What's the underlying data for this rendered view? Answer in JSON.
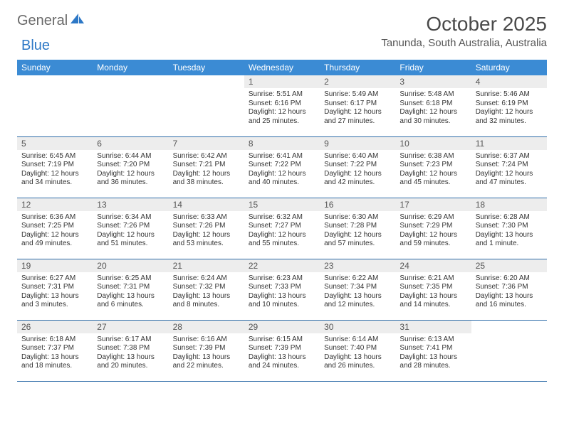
{
  "logo": {
    "word1": "General",
    "word2": "Blue"
  },
  "title": "October 2025",
  "location": "Tanunda, South Australia, Australia",
  "headers": [
    "Sunday",
    "Monday",
    "Tuesday",
    "Wednesday",
    "Thursday",
    "Friday",
    "Saturday"
  ],
  "colors": {
    "header_bg": "#3b8bd4",
    "header_text": "#ffffff",
    "rule": "#2d6ca8",
    "daynum_bg": "#ededed",
    "logo_accent": "#2d78c6"
  },
  "weeks": [
    [
      {
        "n": "",
        "sr": "",
        "ss": "",
        "dl": ""
      },
      {
        "n": "",
        "sr": "",
        "ss": "",
        "dl": ""
      },
      {
        "n": "",
        "sr": "",
        "ss": "",
        "dl": ""
      },
      {
        "n": "1",
        "sr": "Sunrise: 5:51 AM",
        "ss": "Sunset: 6:16 PM",
        "dl": "Daylight: 12 hours and 25 minutes."
      },
      {
        "n": "2",
        "sr": "Sunrise: 5:49 AM",
        "ss": "Sunset: 6:17 PM",
        "dl": "Daylight: 12 hours and 27 minutes."
      },
      {
        "n": "3",
        "sr": "Sunrise: 5:48 AM",
        "ss": "Sunset: 6:18 PM",
        "dl": "Daylight: 12 hours and 30 minutes."
      },
      {
        "n": "4",
        "sr": "Sunrise: 5:46 AM",
        "ss": "Sunset: 6:19 PM",
        "dl": "Daylight: 12 hours and 32 minutes."
      }
    ],
    [
      {
        "n": "5",
        "sr": "Sunrise: 6:45 AM",
        "ss": "Sunset: 7:19 PM",
        "dl": "Daylight: 12 hours and 34 minutes."
      },
      {
        "n": "6",
        "sr": "Sunrise: 6:44 AM",
        "ss": "Sunset: 7:20 PM",
        "dl": "Daylight: 12 hours and 36 minutes."
      },
      {
        "n": "7",
        "sr": "Sunrise: 6:42 AM",
        "ss": "Sunset: 7:21 PM",
        "dl": "Daylight: 12 hours and 38 minutes."
      },
      {
        "n": "8",
        "sr": "Sunrise: 6:41 AM",
        "ss": "Sunset: 7:22 PM",
        "dl": "Daylight: 12 hours and 40 minutes."
      },
      {
        "n": "9",
        "sr": "Sunrise: 6:40 AM",
        "ss": "Sunset: 7:22 PM",
        "dl": "Daylight: 12 hours and 42 minutes."
      },
      {
        "n": "10",
        "sr": "Sunrise: 6:38 AM",
        "ss": "Sunset: 7:23 PM",
        "dl": "Daylight: 12 hours and 45 minutes."
      },
      {
        "n": "11",
        "sr": "Sunrise: 6:37 AM",
        "ss": "Sunset: 7:24 PM",
        "dl": "Daylight: 12 hours and 47 minutes."
      }
    ],
    [
      {
        "n": "12",
        "sr": "Sunrise: 6:36 AM",
        "ss": "Sunset: 7:25 PM",
        "dl": "Daylight: 12 hours and 49 minutes."
      },
      {
        "n": "13",
        "sr": "Sunrise: 6:34 AM",
        "ss": "Sunset: 7:26 PM",
        "dl": "Daylight: 12 hours and 51 minutes."
      },
      {
        "n": "14",
        "sr": "Sunrise: 6:33 AM",
        "ss": "Sunset: 7:26 PM",
        "dl": "Daylight: 12 hours and 53 minutes."
      },
      {
        "n": "15",
        "sr": "Sunrise: 6:32 AM",
        "ss": "Sunset: 7:27 PM",
        "dl": "Daylight: 12 hours and 55 minutes."
      },
      {
        "n": "16",
        "sr": "Sunrise: 6:30 AM",
        "ss": "Sunset: 7:28 PM",
        "dl": "Daylight: 12 hours and 57 minutes."
      },
      {
        "n": "17",
        "sr": "Sunrise: 6:29 AM",
        "ss": "Sunset: 7:29 PM",
        "dl": "Daylight: 12 hours and 59 minutes."
      },
      {
        "n": "18",
        "sr": "Sunrise: 6:28 AM",
        "ss": "Sunset: 7:30 PM",
        "dl": "Daylight: 13 hours and 1 minute."
      }
    ],
    [
      {
        "n": "19",
        "sr": "Sunrise: 6:27 AM",
        "ss": "Sunset: 7:31 PM",
        "dl": "Daylight: 13 hours and 3 minutes."
      },
      {
        "n": "20",
        "sr": "Sunrise: 6:25 AM",
        "ss": "Sunset: 7:31 PM",
        "dl": "Daylight: 13 hours and 6 minutes."
      },
      {
        "n": "21",
        "sr": "Sunrise: 6:24 AM",
        "ss": "Sunset: 7:32 PM",
        "dl": "Daylight: 13 hours and 8 minutes."
      },
      {
        "n": "22",
        "sr": "Sunrise: 6:23 AM",
        "ss": "Sunset: 7:33 PM",
        "dl": "Daylight: 13 hours and 10 minutes."
      },
      {
        "n": "23",
        "sr": "Sunrise: 6:22 AM",
        "ss": "Sunset: 7:34 PM",
        "dl": "Daylight: 13 hours and 12 minutes."
      },
      {
        "n": "24",
        "sr": "Sunrise: 6:21 AM",
        "ss": "Sunset: 7:35 PM",
        "dl": "Daylight: 13 hours and 14 minutes."
      },
      {
        "n": "25",
        "sr": "Sunrise: 6:20 AM",
        "ss": "Sunset: 7:36 PM",
        "dl": "Daylight: 13 hours and 16 minutes."
      }
    ],
    [
      {
        "n": "26",
        "sr": "Sunrise: 6:18 AM",
        "ss": "Sunset: 7:37 PM",
        "dl": "Daylight: 13 hours and 18 minutes."
      },
      {
        "n": "27",
        "sr": "Sunrise: 6:17 AM",
        "ss": "Sunset: 7:38 PM",
        "dl": "Daylight: 13 hours and 20 minutes."
      },
      {
        "n": "28",
        "sr": "Sunrise: 6:16 AM",
        "ss": "Sunset: 7:39 PM",
        "dl": "Daylight: 13 hours and 22 minutes."
      },
      {
        "n": "29",
        "sr": "Sunrise: 6:15 AM",
        "ss": "Sunset: 7:39 PM",
        "dl": "Daylight: 13 hours and 24 minutes."
      },
      {
        "n": "30",
        "sr": "Sunrise: 6:14 AM",
        "ss": "Sunset: 7:40 PM",
        "dl": "Daylight: 13 hours and 26 minutes."
      },
      {
        "n": "31",
        "sr": "Sunrise: 6:13 AM",
        "ss": "Sunset: 7:41 PM",
        "dl": "Daylight: 13 hours and 28 minutes."
      },
      {
        "n": "",
        "sr": "",
        "ss": "",
        "dl": ""
      }
    ]
  ]
}
